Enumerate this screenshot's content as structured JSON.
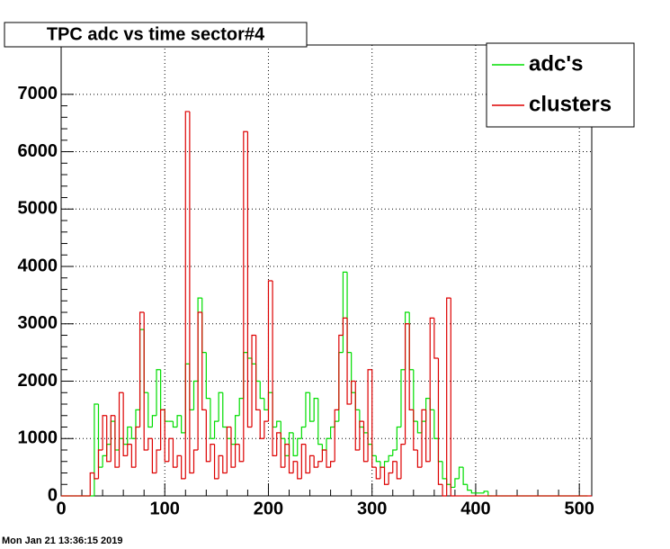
{
  "chart_data": {
    "type": "histogram",
    "title": "TPC adc vs time sector#4",
    "footer": "Mon Jan 21 13:36:15 2019",
    "bins": [
      0,
      4,
      8,
      12,
      16,
      20,
      24,
      28,
      32,
      36,
      40,
      44,
      48,
      52,
      56,
      60,
      64,
      68,
      72,
      76,
      80,
      84,
      88,
      92,
      96,
      100,
      104,
      108,
      112,
      116,
      120,
      124,
      128,
      132,
      136,
      140,
      144,
      148,
      152,
      156,
      160,
      164,
      168,
      172,
      176,
      180,
      184,
      188,
      192,
      196,
      200,
      204,
      208,
      212,
      216,
      220,
      224,
      228,
      232,
      236,
      240,
      244,
      248,
      252,
      256,
      260,
      264,
      268,
      272,
      276,
      280,
      284,
      288,
      292,
      296,
      300,
      304,
      308,
      312,
      316,
      320,
      324,
      328,
      332,
      336,
      340,
      344,
      348,
      352,
      356,
      360,
      364,
      368,
      372,
      376,
      380,
      384,
      388,
      392,
      396,
      400,
      404,
      408,
      412,
      416,
      420,
      424,
      428,
      432,
      436,
      440,
      444,
      448,
      452,
      456,
      460,
      464,
      468,
      472,
      476,
      480,
      484,
      488,
      492,
      496,
      500,
      504,
      508,
      512
    ],
    "series": [
      {
        "name": "adc's",
        "color": "#00dd00",
        "values": [
          0,
          0,
          0,
          0,
          0,
          0,
          0,
          0,
          1600,
          500,
          700,
          900,
          1300,
          800,
          1000,
          900,
          1200,
          1000,
          1500,
          2900,
          1800,
          1200,
          1400,
          2200,
          1500,
          1300,
          1300,
          1200,
          1400,
          1100,
          2300,
          1500,
          2000,
          3450,
          2500,
          1700,
          1000,
          1300,
          1800,
          1200,
          1000,
          900,
          1400,
          1700,
          2500,
          2400,
          2300,
          2000,
          1700,
          1500,
          1800,
          1200,
          1300,
          1000,
          700,
          1100,
          700,
          1000,
          1200,
          1800,
          1300,
          1700,
          900,
          800,
          1000,
          1200,
          1300,
          2500,
          3900,
          2500,
          1800,
          1500,
          1200,
          1100,
          900,
          700,
          600,
          500,
          600,
          700,
          800,
          1200,
          2200,
          3200,
          2200,
          1300,
          1100,
          1300,
          1700,
          1500,
          1000,
          600,
          300,
          200,
          150,
          300,
          500,
          200,
          100,
          50,
          50,
          50,
          80,
          0,
          0,
          0,
          0,
          0,
          0,
          0,
          0,
          0,
          0,
          0,
          0,
          0,
          0,
          0,
          0,
          0,
          0,
          0,
          0,
          0,
          0,
          0,
          0
        ]
      },
      {
        "name": "clusters",
        "color": "#dd0000",
        "values": [
          0,
          0,
          0,
          0,
          0,
          0,
          0,
          400,
          300,
          800,
          1400,
          600,
          1400,
          500,
          1800,
          700,
          900,
          500,
          1200,
          3200,
          800,
          1000,
          400,
          800,
          1500,
          600,
          1000,
          500,
          700,
          300,
          6700,
          400,
          800,
          3200,
          1500,
          600,
          900,
          300,
          700,
          400,
          1200,
          500,
          900,
          600,
          6350,
          1200,
          2800,
          1500,
          1000,
          1300,
          3750,
          700,
          1100,
          500,
          900,
          400,
          600,
          300,
          900,
          400,
          700,
          500,
          600,
          800,
          500,
          600,
          1500,
          2800,
          3100,
          1600,
          2000,
          800,
          1300,
          600,
          2200,
          500,
          300,
          500,
          200,
          400,
          600,
          300,
          900,
          3000,
          1500,
          800,
          500,
          1500,
          600,
          3100,
          2400,
          200,
          0,
          3450,
          0,
          0,
          0,
          0,
          0,
          0,
          0,
          0,
          0,
          0,
          0,
          0,
          0,
          0,
          0,
          0,
          0,
          0,
          0,
          0,
          0,
          0,
          0,
          0,
          0,
          0,
          0,
          0,
          0,
          0,
          0,
          0,
          0,
          0
        ]
      }
    ],
    "xlim": [
      0,
      512
    ],
    "ylim": [
      0,
      7860
    ],
    "xticks": [
      0,
      100,
      200,
      300,
      400,
      500
    ],
    "yticks": [
      0,
      1000,
      2000,
      3000,
      4000,
      5000,
      6000,
      7000
    ],
    "grid": true,
    "legend": "top-right"
  }
}
